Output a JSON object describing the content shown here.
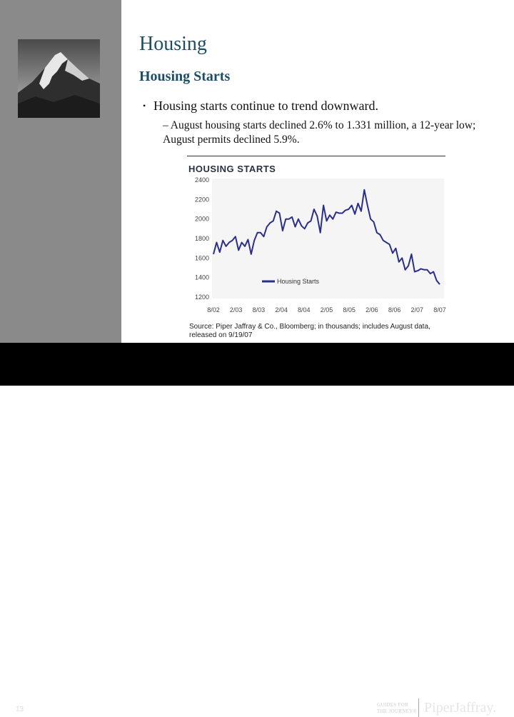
{
  "slide": {
    "title": "Housing",
    "subtitle": "Housing Starts",
    "bullet": "Housing starts continue to trend downward.",
    "sub_bullet": "– August housing starts declined 2.6% to 1.331 million, a 12-year low; August permits declined 5.9%."
  },
  "footer": {
    "page_number": "13",
    "guides_line1": "GUIDES FOR",
    "guides_line2": "THE JOURNEY®",
    "logo": "PiperJaffray."
  },
  "source_text": "Source: Piper Jaffray & Co., Bloomberg; in thousands; includes August data, released on 9/19/07",
  "colors": {
    "line": "#2b2f8a",
    "title_blue": "#1d4e66"
  },
  "chart_data": {
    "type": "line",
    "title": "HOUSING STARTS",
    "xlabel": "",
    "ylabel": "",
    "ylim": [
      1200,
      2400
    ],
    "yticks": [
      "2400",
      "2200",
      "2000",
      "1800",
      "1600",
      "1400",
      "1200"
    ],
    "xticks": [
      "8/02",
      "2/03",
      "8/03",
      "2/04",
      "8/04",
      "2/05",
      "8/05",
      "2/06",
      "8/06",
      "2/07",
      "8/07"
    ],
    "legend": "bottom-left",
    "grid": false,
    "series": [
      {
        "name": "Housing Starts",
        "values": [
          1640,
          1760,
          1660,
          1780,
          1720,
          1760,
          1780,
          1820,
          1680,
          1760,
          1720,
          1790,
          1640,
          1780,
          1860,
          1860,
          1820,
          1920,
          1960,
          1980,
          2080,
          2060,
          1880,
          2000,
          2000,
          2020,
          1920,
          2000,
          1930,
          1900,
          1960,
          1980,
          2100,
          2030,
          1860,
          2140,
          1980,
          2040,
          2000,
          2070,
          2060,
          2060,
          2090,
          2100,
          2140,
          2050,
          2160,
          2080,
          2300,
          2140,
          2000,
          1970,
          1860,
          1840,
          1780,
          1760,
          1740,
          1650,
          1700,
          1560,
          1600,
          1480,
          1520,
          1640,
          1460,
          1470,
          1490,
          1480,
          1480,
          1440,
          1460,
          1370,
          1331
        ]
      }
    ]
  }
}
